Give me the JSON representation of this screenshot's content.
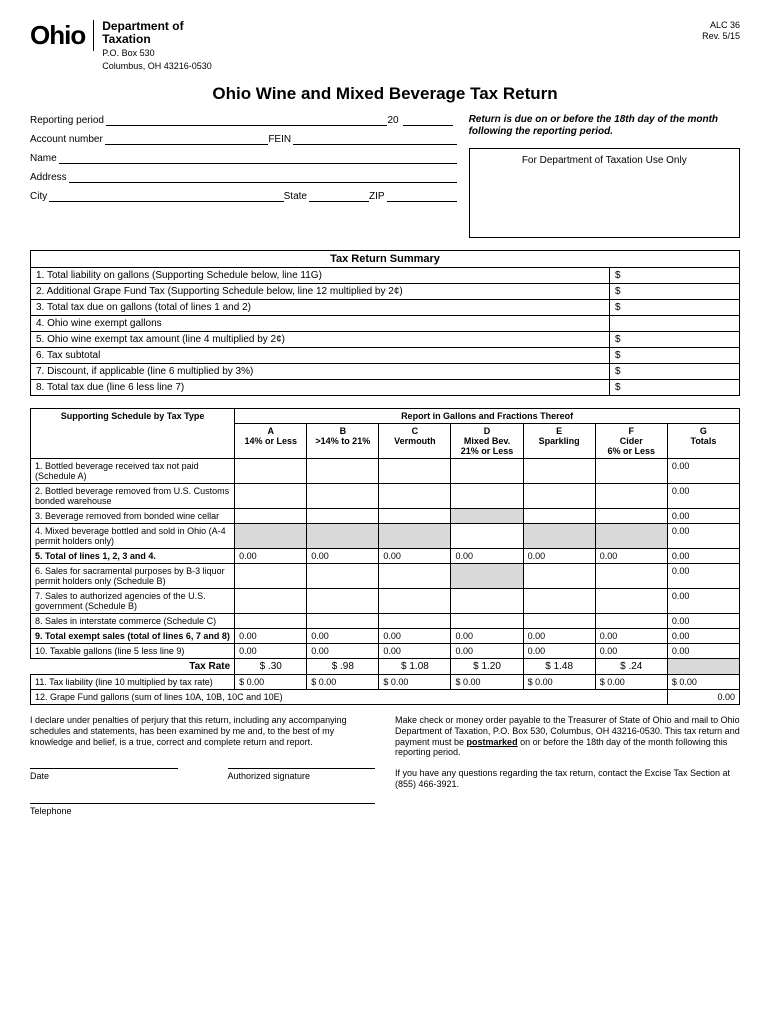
{
  "header": {
    "logo": "Ohio",
    "dept1": "Department of",
    "dept2": "Taxation",
    "pobox": "P.O. Box 530",
    "cityzip": "Columbus, OH  43216-0530",
    "form_id": "ALC 36",
    "rev": "Rev. 5/15"
  },
  "title": "Ohio Wine and Mixed Beverage Tax Return",
  "fields": {
    "reporting": "Reporting period",
    "twenty": "20",
    "account": "Account number",
    "fein": "FEIN",
    "name": "Name",
    "address": "Address",
    "city": "City",
    "state": "State",
    "zip": "ZIP"
  },
  "due_note": "Return is due on or before the 18th day of the month following the reporting period.",
  "dept_box": "For Department of Taxation Use Only",
  "summary": {
    "header": "Tax Return Summary",
    "rows": [
      {
        "label": "1.  Total liability on gallons (Supporting Schedule below, line 11G)",
        "amt": "$"
      },
      {
        "label": "2.  Additional Grape Fund Tax (Supporting Schedule below, line 12 multiplied by 2¢)",
        "amt": "$"
      },
      {
        "label": "3.  Total tax due on gallons (total of lines 1 and 2)",
        "amt": "$"
      },
      {
        "label": "4.  Ohio wine exempt gallons",
        "amt": ""
      },
      {
        "label": "5.  Ohio wine exempt tax amount (line 4 multiplied by 2¢)",
        "amt": "$"
      },
      {
        "label": "6.  Tax subtotal",
        "amt": "$"
      },
      {
        "label": "7.  Discount, if applicable (line 6 multiplied by 3%)",
        "amt": "$"
      },
      {
        "label": "8.  Total tax due (line 6 less line 7)",
        "amt": "$"
      }
    ]
  },
  "schedule": {
    "left_head": "Supporting Schedule by Tax Type",
    "right_head": "Report in Gallons and Fractions Thereof",
    "cols": [
      {
        "l1": "A",
        "l2": "14% or Less"
      },
      {
        "l1": "B",
        "l2": ">14% to 21%"
      },
      {
        "l1": "C",
        "l2": "Vermouth"
      },
      {
        "l1": "D",
        "l2": "Mixed Bev.",
        "l3": "21% or Less"
      },
      {
        "l1": "E",
        "l2": "Sparkling"
      },
      {
        "l1": "F",
        "l2": "Cider",
        "l3": "6% or Less"
      },
      {
        "l1": "G",
        "l2": "Totals"
      }
    ],
    "rows": [
      {
        "label": "1. Bottled beverage received tax not paid (Schedule A)",
        "vals": [
          "",
          "",
          "",
          "",
          "",
          "",
          "0.00"
        ],
        "grey": []
      },
      {
        "label": "2. Bottled beverage removed from U.S. Customs bonded warehouse",
        "vals": [
          "",
          "",
          "",
          "",
          "",
          "",
          "0.00"
        ],
        "grey": []
      },
      {
        "label": "3. Beverage removed from bonded wine cellar",
        "vals": [
          "",
          "",
          "",
          "",
          "",
          "",
          "0.00"
        ],
        "grey": [
          3
        ]
      },
      {
        "label": "4. Mixed beverage bottled and sold in Ohio (A-4 permit holders only)",
        "vals": [
          "",
          "",
          "",
          "",
          "",
          "",
          "0.00"
        ],
        "grey": [
          0,
          1,
          2,
          4,
          5
        ]
      },
      {
        "label": "5. Total of lines 1, 2, 3 and 4.",
        "vals": [
          "0.00",
          "0.00",
          "0.00",
          "0.00",
          "0.00",
          "0.00",
          "0.00"
        ],
        "bold": true
      },
      {
        "label": "6. Sales for sacramental purposes by B-3 liquor permit holders only (Schedule B)",
        "vals": [
          "",
          "",
          "",
          "",
          "",
          "",
          "0.00"
        ],
        "grey": [
          3
        ]
      },
      {
        "label": "7. Sales to authorized agencies of the U.S. government (Schedule B)",
        "vals": [
          "",
          "",
          "",
          "",
          "",
          "",
          "0.00"
        ],
        "grey": []
      },
      {
        "label": "8. Sales in interstate commerce (Schedule C)",
        "vals": [
          "",
          "",
          "",
          "",
          "",
          "",
          "0.00"
        ],
        "grey": []
      },
      {
        "label": "9. Total exempt sales (total of lines 6, 7 and 8)",
        "vals": [
          "0.00",
          "0.00",
          "0.00",
          "0.00",
          "0.00",
          "0.00",
          "0.00"
        ],
        "bold": true
      },
      {
        "label": "10. Taxable gallons (line 5 less line 9)",
        "vals": [
          "0.00",
          "0.00",
          "0.00",
          "0.00",
          "0.00",
          "0.00",
          "0.00"
        ]
      }
    ],
    "rate_label": "Tax Rate",
    "rates": [
      "$ .30",
      "$ .98",
      "$ 1.08",
      "$ 1.20",
      "$ 1.48",
      "$ .24",
      ""
    ],
    "line11_label": "11. Tax liability (line 10 multiplied by tax rate)",
    "line11_vals": [
      "$      0.00",
      "$      0.00",
      "$      0.00",
      "$      0.00",
      "$      0.00",
      "$      0.00",
      "$      0.00"
    ],
    "line12_label": "12. Grape Fund gallons (sum of lines 10A, 10B, 10C and 10E)",
    "line12_val": "0.00"
  },
  "footer": {
    "declare": "I declare under penalties of perjury that this return, including any accompanying schedules and statements, has been examined by me and, to the best of my knowledge and belief, is a true, correct and complete return and report.",
    "mail1": "Make check or money order payable to the Treasurer of State of Ohio and mail to Ohio Department of Taxation, P.O. Box 530, Columbus, OH 43216-0530. This tax return and payment must be ",
    "postmark": "postmarked",
    "mail2": " on or before the 18th day of the month following this reporting period.",
    "contact": "If you have any questions regarding the tax return, contact the Excise Tax Section at (855) 466-3921.",
    "date": "Date",
    "sig": "Authorized signature",
    "tel": "Telephone"
  },
  "colors": {
    "grey": "#d9d9d9",
    "border": "#000000",
    "bg": "#ffffff"
  }
}
